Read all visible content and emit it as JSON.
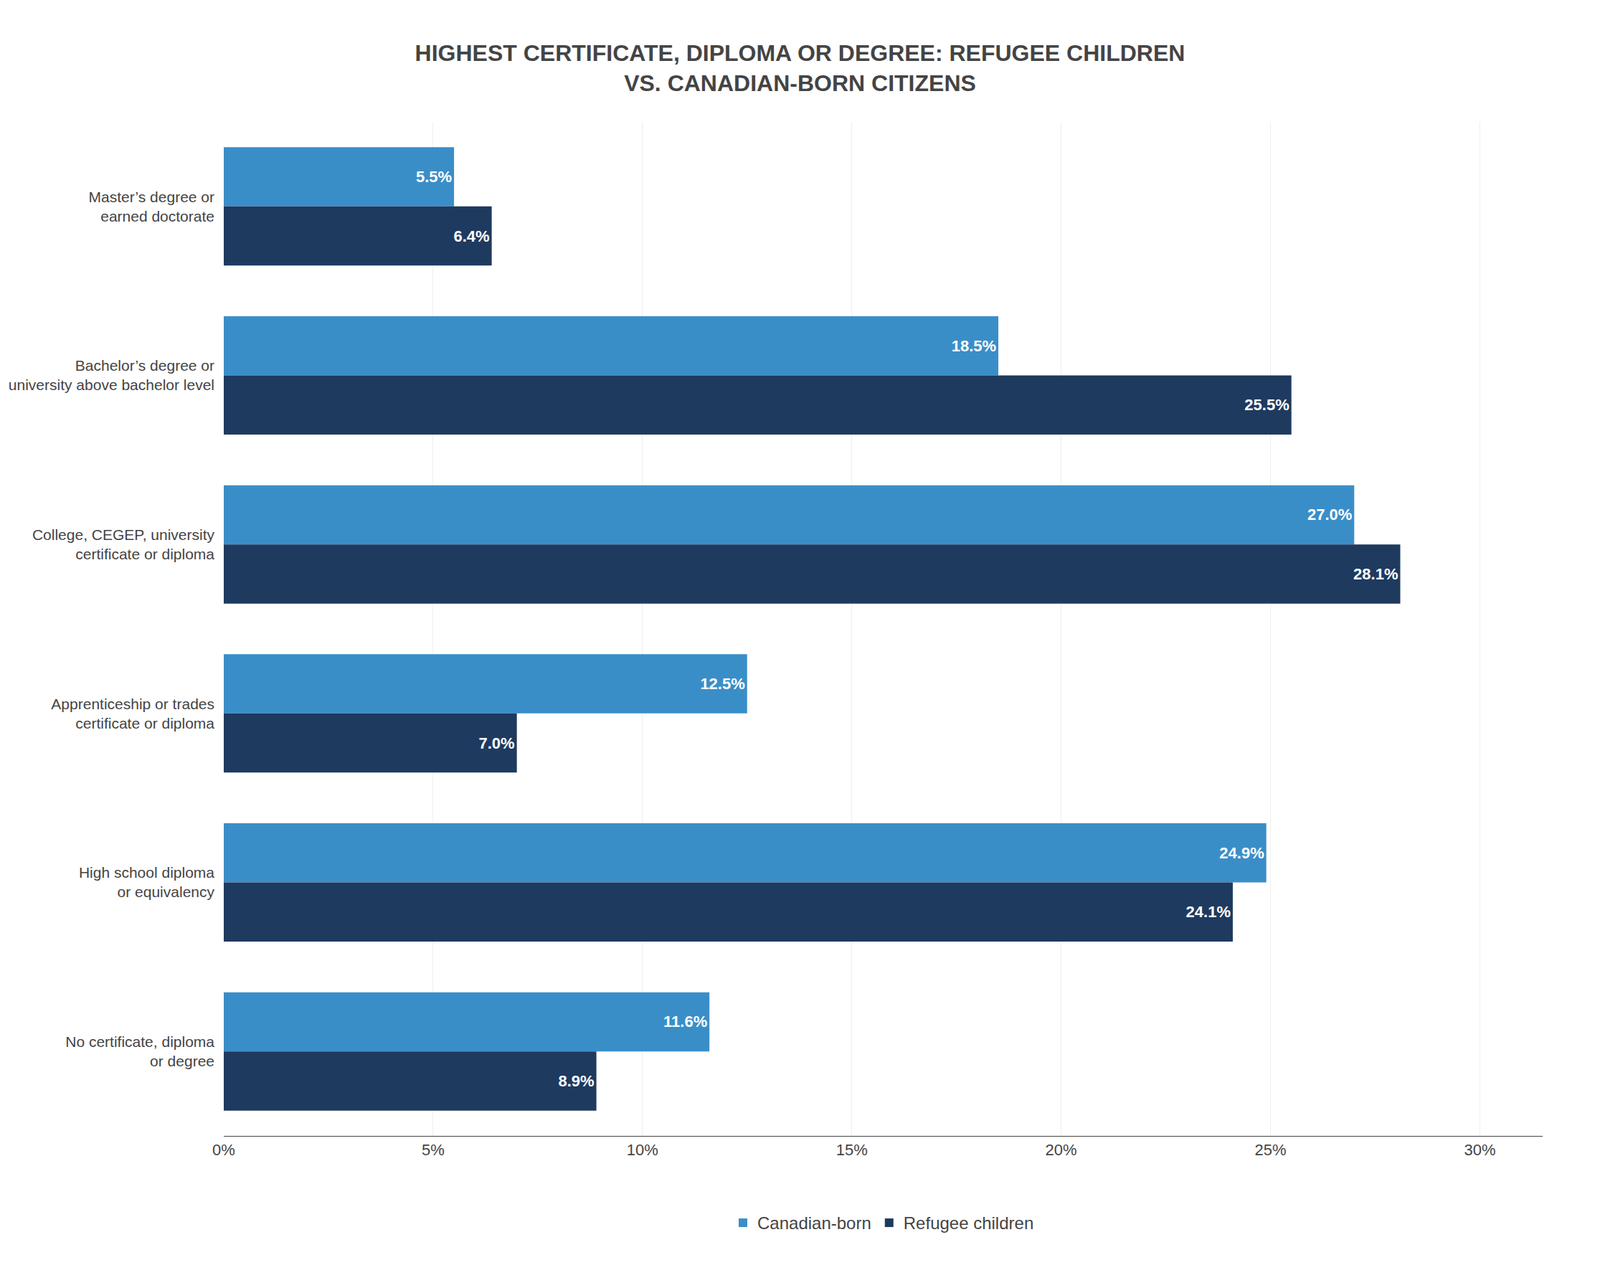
{
  "chart_data": {
    "type": "bar",
    "orientation": "horizontal",
    "title": "HIGHEST CERTIFICATE, DIPLOMA OR DEGREE: REFUGEE CHILDREN\nVS. CANADIAN-BORN CITIZENS",
    "categories": [
      "Master’s degree or\nearned doctorate",
      "Bachelor’s degree or\nuniversity above bachelor level",
      "College, CEGEP, university\ncertificate or diploma",
      "Apprenticeship or trades\ncertificate or diploma",
      "High school diploma\nor equivalency",
      "No certificate, diploma\nor degree"
    ],
    "series": [
      {
        "name": "Canadian-born",
        "color": "#3a8ec8",
        "values": [
          5.5,
          18.5,
          27.0,
          12.5,
          24.9,
          11.6
        ],
        "value_labels": [
          "5.5%",
          "18.5%",
          "27.0%",
          "12.5%",
          "24.9%",
          "11.6%"
        ]
      },
      {
        "name": "Refugee children",
        "color": "#1e3a5f",
        "values": [
          6.4,
          25.5,
          28.1,
          7.0,
          24.1,
          8.9
        ],
        "value_labels": [
          "6.4%",
          "25.5%",
          "28.1%",
          "7.0%",
          "24.1%",
          "8.9%"
        ]
      }
    ],
    "xlim": [
      0,
      31.5
    ],
    "xticks": [
      {
        "value": 0,
        "label": "0%"
      },
      {
        "value": 5,
        "label": "5%"
      },
      {
        "value": 10,
        "label": "10%"
      },
      {
        "value": 15,
        "label": "15%"
      },
      {
        "value": 20,
        "label": "20%"
      },
      {
        "value": 25,
        "label": "25%"
      },
      {
        "value": 30,
        "label": "30%"
      }
    ],
    "grid": true,
    "data_labels": true,
    "legend": "bottom"
  }
}
